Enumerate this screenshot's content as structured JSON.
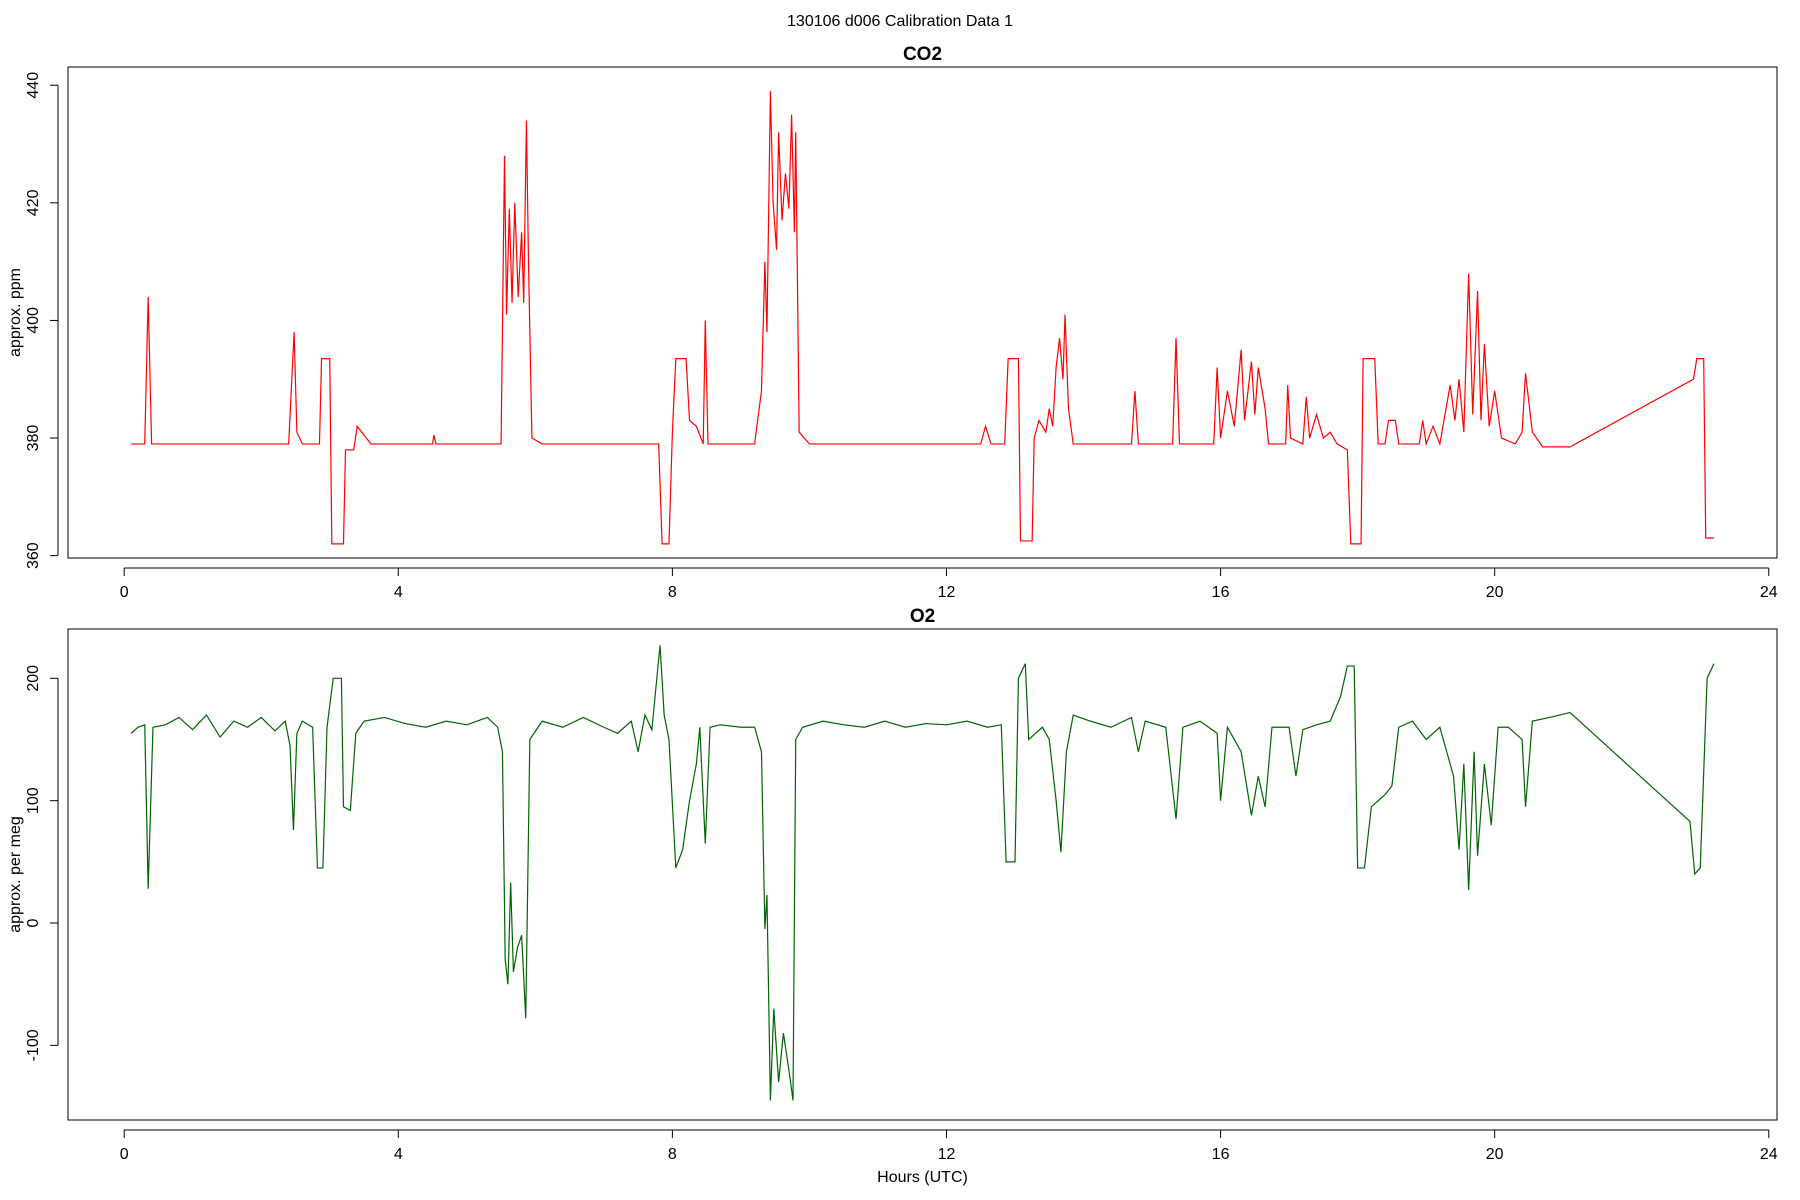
{
  "title": "130106   d006   Calibration Data 1",
  "chart_data": [
    {
      "type": "line",
      "title": "CO2",
      "ylabel": "approx. ppm",
      "color": "#ff0000",
      "xlim": [
        -0.82,
        24.12
      ],
      "ylim": [
        359.6,
        443.1
      ],
      "xticks": [
        0,
        4,
        8,
        12,
        16,
        20,
        24
      ],
      "yticks": [
        360,
        380,
        400,
        420,
        440
      ],
      "x": [
        0.1,
        0.3,
        0.35,
        0.4,
        2.4,
        2.48,
        2.52,
        2.6,
        2.85,
        2.88,
        3.0,
        3.03,
        3.2,
        3.23,
        3.35,
        3.4,
        3.6,
        4.5,
        4.52,
        4.55,
        5.5,
        5.55,
        5.58,
        5.62,
        5.66,
        5.7,
        5.75,
        5.8,
        5.83,
        5.87,
        5.9,
        5.95,
        6.1,
        7.8,
        7.85,
        7.95,
        8.0,
        8.05,
        8.2,
        8.25,
        8.35,
        8.45,
        8.48,
        8.52,
        9.2,
        9.3,
        9.35,
        9.38,
        9.43,
        9.47,
        9.52,
        9.55,
        9.6,
        9.65,
        9.7,
        9.74,
        9.78,
        9.8,
        9.85,
        10,
        11,
        12.5,
        12.57,
        12.65,
        12.85,
        12.9,
        13.05,
        13.08,
        13.25,
        13.28,
        13.35,
        13.45,
        13.5,
        13.55,
        13.6,
        13.65,
        13.7,
        13.73,
        13.78,
        13.85,
        14.7,
        14.75,
        14.8,
        15.3,
        15.35,
        15.4,
        15.9,
        15.95,
        16.0,
        16.1,
        16.2,
        16.3,
        16.35,
        16.45,
        16.5,
        16.55,
        16.65,
        16.7,
        16.95,
        16.98,
        17.02,
        17.2,
        17.25,
        17.3,
        17.4,
        17.5,
        17.6,
        17.7,
        17.85,
        17.9,
        18.05,
        18.08,
        18.25,
        18.3,
        18.4,
        18.45,
        18.55,
        18.6,
        18.9,
        18.95,
        19.0,
        19.1,
        19.2,
        19.35,
        19.42,
        19.48,
        19.55,
        19.62,
        19.68,
        19.75,
        19.8,
        19.85,
        19.92,
        20.0,
        20.1,
        20.3,
        20.4,
        20.45,
        20.55,
        20.7,
        21.1,
        22.9,
        22.95,
        23.05,
        23.08,
        23.2
      ],
      "values": [
        379,
        379,
        404,
        379,
        379,
        398,
        381,
        379,
        379,
        393.5,
        393.5,
        362,
        362,
        378,
        378,
        382,
        379,
        379,
        380.5,
        379,
        379,
        428,
        401,
        419,
        403,
        420,
        404,
        415,
        403,
        434,
        410,
        380,
        379,
        379,
        362,
        362,
        381,
        393.5,
        393.5,
        383,
        382,
        379,
        400,
        379,
        379,
        388,
        410,
        398,
        439,
        420,
        412,
        432,
        417,
        425,
        419,
        435,
        415,
        432,
        381,
        379,
        379,
        379,
        382,
        379,
        379,
        393.5,
        393.5,
        362.5,
        362.5,
        380,
        383,
        381,
        385,
        382,
        392,
        397,
        390,
        401,
        385,
        379,
        379,
        388,
        379,
        379,
        397,
        379,
        379,
        392,
        380,
        388,
        382,
        395,
        383,
        393,
        384,
        392,
        385,
        379,
        379,
        389,
        380,
        379,
        387,
        380,
        384,
        380,
        381,
        379,
        378,
        362,
        362,
        393.5,
        393.5,
        379,
        379,
        383,
        383,
        379,
        379,
        383,
        379,
        382,
        379,
        389,
        383,
        390,
        381,
        408,
        384,
        405,
        383,
        396,
        382,
        388,
        380,
        379,
        381,
        391,
        381,
        378.5,
        378.5,
        390,
        393.5,
        393.5,
        363,
        363
      ]
    },
    {
      "type": "line",
      "title": "O2",
      "ylabel": "approx. per meg",
      "xlabel": "Hours (UTC)",
      "color": "#006400",
      "xlim": [
        -0.82,
        24.12
      ],
      "ylim": [
        -161,
        240.3
      ],
      "xticks": [
        0,
        4,
        8,
        12,
        16,
        20,
        24
      ],
      "yticks": [
        -100,
        0,
        100,
        200
      ],
      "x": [
        0.1,
        0.2,
        0.3,
        0.35,
        0.42,
        0.6,
        0.8,
        1.0,
        1.2,
        1.4,
        1.6,
        1.8,
        2.0,
        2.2,
        2.35,
        2.42,
        2.47,
        2.52,
        2.6,
        2.75,
        2.82,
        2.9,
        2.96,
        3.05,
        3.17,
        3.2,
        3.3,
        3.38,
        3.5,
        3.8,
        4.1,
        4.4,
        4.7,
        5.0,
        5.3,
        5.45,
        5.52,
        5.56,
        5.6,
        5.64,
        5.68,
        5.74,
        5.8,
        5.86,
        5.92,
        6.1,
        6.4,
        6.7,
        7.0,
        7.2,
        7.4,
        7.5,
        7.6,
        7.7,
        7.82,
        7.88,
        7.95,
        8.05,
        8.15,
        8.25,
        8.35,
        8.4,
        8.48,
        8.55,
        8.7,
        9.0,
        9.2,
        9.3,
        9.35,
        9.38,
        9.43,
        9.48,
        9.55,
        9.62,
        9.7,
        9.76,
        9.8,
        9.9,
        10.2,
        10.5,
        10.8,
        11.1,
        11.4,
        11.7,
        12.0,
        12.3,
        12.6,
        12.8,
        12.87,
        13.0,
        13.05,
        13.15,
        13.2,
        13.4,
        13.5,
        13.6,
        13.67,
        13.75,
        13.85,
        14.1,
        14.4,
        14.7,
        14.8,
        14.9,
        15.2,
        15.35,
        15.45,
        15.7,
        15.95,
        16.0,
        16.1,
        16.3,
        16.45,
        16.55,
        16.65,
        16.75,
        17.0,
        17.1,
        17.2,
        17.4,
        17.6,
        17.75,
        17.85,
        17.95,
        18.0,
        18.1,
        18.2,
        18.4,
        18.5,
        18.6,
        18.8,
        19.0,
        19.2,
        19.4,
        19.48,
        19.55,
        19.62,
        19.7,
        19.75,
        19.85,
        19.95,
        20.05,
        20.2,
        20.4,
        20.45,
        20.55,
        20.8,
        21.1,
        22.85,
        22.92,
        23.0,
        23.1,
        23.2
      ],
      "values": [
        155,
        160,
        162,
        28,
        160,
        162,
        168,
        158,
        170,
        152,
        165,
        160,
        168,
        157,
        165,
        145,
        76,
        155,
        165,
        160,
        45,
        45,
        160,
        200,
        200,
        95,
        92,
        155,
        165,
        168,
        163,
        160,
        165,
        162,
        168,
        160,
        140,
        -30,
        -50,
        33,
        -40,
        -20,
        -10,
        -78,
        150,
        165,
        160,
        168,
        160,
        155,
        165,
        140,
        170,
        158,
        227,
        170,
        150,
        45,
        60,
        100,
        130,
        160,
        65,
        160,
        162,
        160,
        160,
        140,
        -5,
        23,
        -145,
        -70,
        -130,
        -90,
        -120,
        -145,
        150,
        160,
        165,
        162,
        160,
        165,
        160,
        163,
        162,
        165,
        160,
        162,
        50,
        50,
        200,
        212,
        150,
        160,
        150,
        100,
        58,
        140,
        170,
        165,
        160,
        168,
        140,
        165,
        160,
        85,
        160,
        165,
        155,
        100,
        160,
        140,
        88,
        120,
        95,
        160,
        160,
        120,
        158,
        162,
        165,
        185,
        210,
        210,
        45,
        45,
        95,
        105,
        112,
        160,
        165,
        150,
        160,
        120,
        60,
        130,
        27,
        140,
        55,
        130,
        80,
        160,
        160,
        150,
        95,
        165,
        168,
        172,
        83,
        40,
        45,
        200,
        212
      ]
    }
  ]
}
